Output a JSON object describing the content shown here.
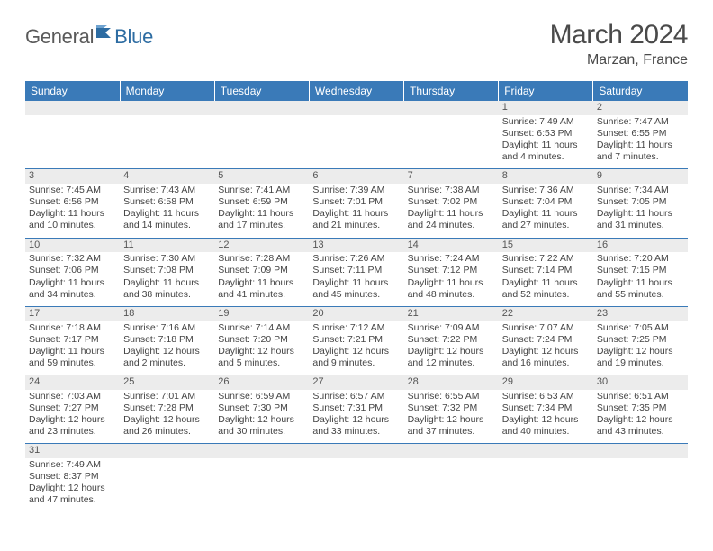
{
  "logo": {
    "general": "General",
    "blue": "Blue"
  },
  "title": "March 2024",
  "location": "Marzan, France",
  "colors": {
    "header_bg": "#3a7ab8",
    "header_text": "#ffffff",
    "daynum_bg": "#ececec",
    "row_divider": "#3a7ab8",
    "body_text": "#444444",
    "logo_gray": "#5a5a5a",
    "logo_blue": "#2d6ca2"
  },
  "weekdays": [
    "Sunday",
    "Monday",
    "Tuesday",
    "Wednesday",
    "Thursday",
    "Friday",
    "Saturday"
  ],
  "weeks": [
    [
      null,
      null,
      null,
      null,
      null,
      {
        "n": "1",
        "sr": "Sunrise: 7:49 AM",
        "ss": "Sunset: 6:53 PM",
        "d1": "Daylight: 11 hours",
        "d2": "and 4 minutes."
      },
      {
        "n": "2",
        "sr": "Sunrise: 7:47 AM",
        "ss": "Sunset: 6:55 PM",
        "d1": "Daylight: 11 hours",
        "d2": "and 7 minutes."
      }
    ],
    [
      {
        "n": "3",
        "sr": "Sunrise: 7:45 AM",
        "ss": "Sunset: 6:56 PM",
        "d1": "Daylight: 11 hours",
        "d2": "and 10 minutes."
      },
      {
        "n": "4",
        "sr": "Sunrise: 7:43 AM",
        "ss": "Sunset: 6:58 PM",
        "d1": "Daylight: 11 hours",
        "d2": "and 14 minutes."
      },
      {
        "n": "5",
        "sr": "Sunrise: 7:41 AM",
        "ss": "Sunset: 6:59 PM",
        "d1": "Daylight: 11 hours",
        "d2": "and 17 minutes."
      },
      {
        "n": "6",
        "sr": "Sunrise: 7:39 AM",
        "ss": "Sunset: 7:01 PM",
        "d1": "Daylight: 11 hours",
        "d2": "and 21 minutes."
      },
      {
        "n": "7",
        "sr": "Sunrise: 7:38 AM",
        "ss": "Sunset: 7:02 PM",
        "d1": "Daylight: 11 hours",
        "d2": "and 24 minutes."
      },
      {
        "n": "8",
        "sr": "Sunrise: 7:36 AM",
        "ss": "Sunset: 7:04 PM",
        "d1": "Daylight: 11 hours",
        "d2": "and 27 minutes."
      },
      {
        "n": "9",
        "sr": "Sunrise: 7:34 AM",
        "ss": "Sunset: 7:05 PM",
        "d1": "Daylight: 11 hours",
        "d2": "and 31 minutes."
      }
    ],
    [
      {
        "n": "10",
        "sr": "Sunrise: 7:32 AM",
        "ss": "Sunset: 7:06 PM",
        "d1": "Daylight: 11 hours",
        "d2": "and 34 minutes."
      },
      {
        "n": "11",
        "sr": "Sunrise: 7:30 AM",
        "ss": "Sunset: 7:08 PM",
        "d1": "Daylight: 11 hours",
        "d2": "and 38 minutes."
      },
      {
        "n": "12",
        "sr": "Sunrise: 7:28 AM",
        "ss": "Sunset: 7:09 PM",
        "d1": "Daylight: 11 hours",
        "d2": "and 41 minutes."
      },
      {
        "n": "13",
        "sr": "Sunrise: 7:26 AM",
        "ss": "Sunset: 7:11 PM",
        "d1": "Daylight: 11 hours",
        "d2": "and 45 minutes."
      },
      {
        "n": "14",
        "sr": "Sunrise: 7:24 AM",
        "ss": "Sunset: 7:12 PM",
        "d1": "Daylight: 11 hours",
        "d2": "and 48 minutes."
      },
      {
        "n": "15",
        "sr": "Sunrise: 7:22 AM",
        "ss": "Sunset: 7:14 PM",
        "d1": "Daylight: 11 hours",
        "d2": "and 52 minutes."
      },
      {
        "n": "16",
        "sr": "Sunrise: 7:20 AM",
        "ss": "Sunset: 7:15 PM",
        "d1": "Daylight: 11 hours",
        "d2": "and 55 minutes."
      }
    ],
    [
      {
        "n": "17",
        "sr": "Sunrise: 7:18 AM",
        "ss": "Sunset: 7:17 PM",
        "d1": "Daylight: 11 hours",
        "d2": "and 59 minutes."
      },
      {
        "n": "18",
        "sr": "Sunrise: 7:16 AM",
        "ss": "Sunset: 7:18 PM",
        "d1": "Daylight: 12 hours",
        "d2": "and 2 minutes."
      },
      {
        "n": "19",
        "sr": "Sunrise: 7:14 AM",
        "ss": "Sunset: 7:20 PM",
        "d1": "Daylight: 12 hours",
        "d2": "and 5 minutes."
      },
      {
        "n": "20",
        "sr": "Sunrise: 7:12 AM",
        "ss": "Sunset: 7:21 PM",
        "d1": "Daylight: 12 hours",
        "d2": "and 9 minutes."
      },
      {
        "n": "21",
        "sr": "Sunrise: 7:09 AM",
        "ss": "Sunset: 7:22 PM",
        "d1": "Daylight: 12 hours",
        "d2": "and 12 minutes."
      },
      {
        "n": "22",
        "sr": "Sunrise: 7:07 AM",
        "ss": "Sunset: 7:24 PM",
        "d1": "Daylight: 12 hours",
        "d2": "and 16 minutes."
      },
      {
        "n": "23",
        "sr": "Sunrise: 7:05 AM",
        "ss": "Sunset: 7:25 PM",
        "d1": "Daylight: 12 hours",
        "d2": "and 19 minutes."
      }
    ],
    [
      {
        "n": "24",
        "sr": "Sunrise: 7:03 AM",
        "ss": "Sunset: 7:27 PM",
        "d1": "Daylight: 12 hours",
        "d2": "and 23 minutes."
      },
      {
        "n": "25",
        "sr": "Sunrise: 7:01 AM",
        "ss": "Sunset: 7:28 PM",
        "d1": "Daylight: 12 hours",
        "d2": "and 26 minutes."
      },
      {
        "n": "26",
        "sr": "Sunrise: 6:59 AM",
        "ss": "Sunset: 7:30 PM",
        "d1": "Daylight: 12 hours",
        "d2": "and 30 minutes."
      },
      {
        "n": "27",
        "sr": "Sunrise: 6:57 AM",
        "ss": "Sunset: 7:31 PM",
        "d1": "Daylight: 12 hours",
        "d2": "and 33 minutes."
      },
      {
        "n": "28",
        "sr": "Sunrise: 6:55 AM",
        "ss": "Sunset: 7:32 PM",
        "d1": "Daylight: 12 hours",
        "d2": "and 37 minutes."
      },
      {
        "n": "29",
        "sr": "Sunrise: 6:53 AM",
        "ss": "Sunset: 7:34 PM",
        "d1": "Daylight: 12 hours",
        "d2": "and 40 minutes."
      },
      {
        "n": "30",
        "sr": "Sunrise: 6:51 AM",
        "ss": "Sunset: 7:35 PM",
        "d1": "Daylight: 12 hours",
        "d2": "and 43 minutes."
      }
    ],
    [
      {
        "n": "31",
        "sr": "Sunrise: 7:49 AM",
        "ss": "Sunset: 8:37 PM",
        "d1": "Daylight: 12 hours",
        "d2": "and 47 minutes."
      },
      null,
      null,
      null,
      null,
      null,
      null
    ]
  ]
}
